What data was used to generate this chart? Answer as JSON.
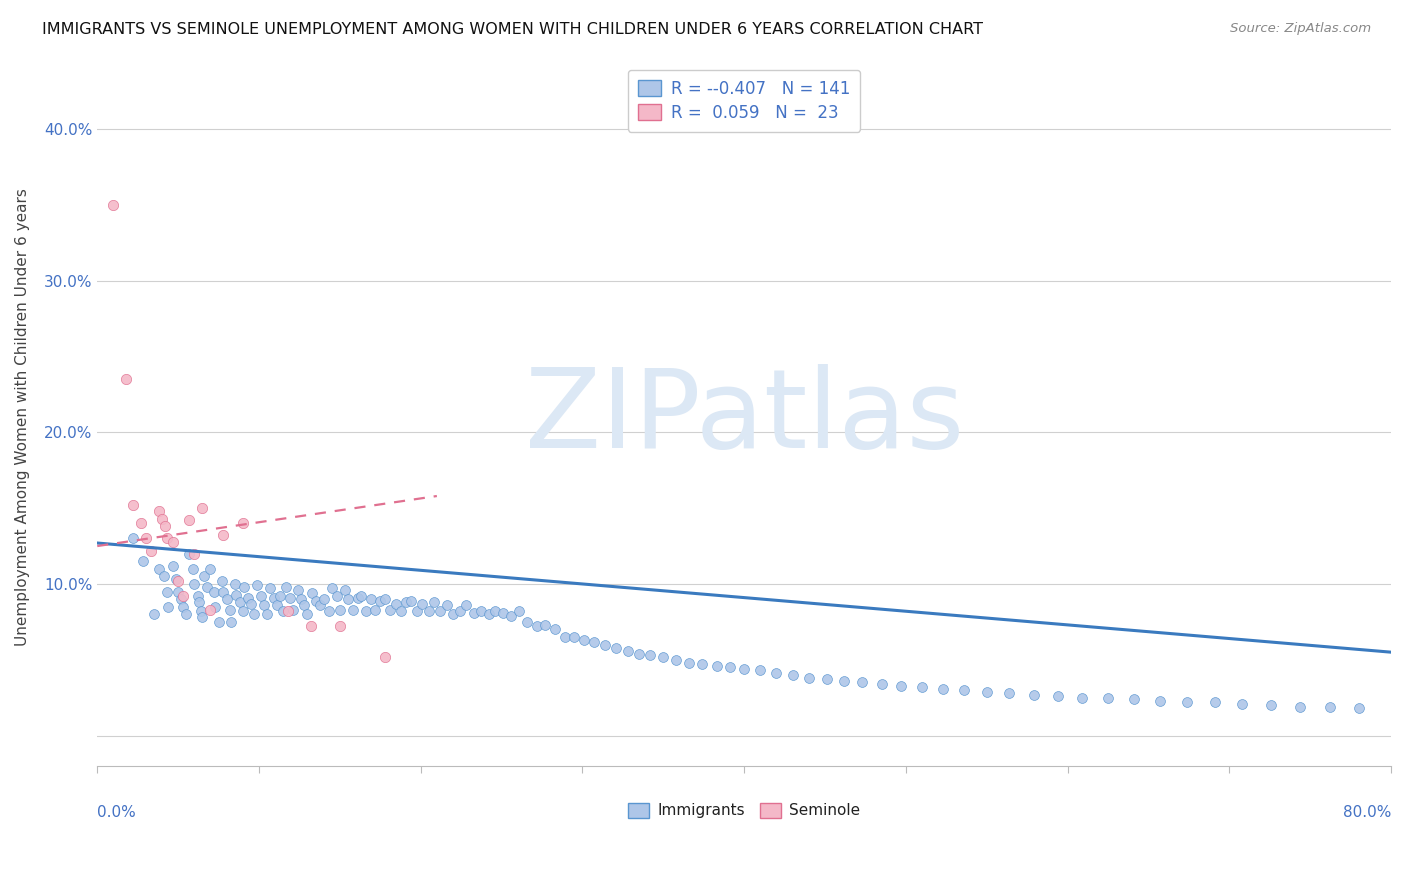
{
  "title": "IMMIGRANTS VS SEMINOLE UNEMPLOYMENT AMONG WOMEN WITH CHILDREN UNDER 6 YEARS CORRELATION CHART",
  "source": "Source: ZipAtlas.com",
  "ylabel": "Unemployment Among Women with Children Under 6 years",
  "xlim": [
    0.0,
    0.8
  ],
  "ylim": [
    -0.02,
    0.44
  ],
  "yticks": [
    0.0,
    0.1,
    0.2,
    0.3,
    0.4
  ],
  "ytick_labels": [
    "",
    "10.0%",
    "20.0%",
    "30.0%",
    "40.0%"
  ],
  "xtick_left": "0.0%",
  "xtick_right": "80.0%",
  "legend_r1": "-0.407",
  "legend_n1": "141",
  "legend_r2": "0.059",
  "legend_n2": "23",
  "color_imm_fill": "#aec6e8",
  "color_imm_edge": "#5a96d0",
  "color_sem_fill": "#f4b8c8",
  "color_sem_edge": "#e07090",
  "color_trend_imm": "#3a7abf",
  "color_trend_sem": "#e07090",
  "watermark_color": "#dce8f5",
  "trend_imm_x0": 0.0,
  "trend_imm_x1": 0.8,
  "trend_imm_y0": 0.127,
  "trend_imm_y1": 0.055,
  "trend_sem_x0": 0.0,
  "trend_sem_x1": 0.21,
  "trend_sem_y0": 0.125,
  "trend_sem_y1": 0.158,
  "imm_x": [
    0.022,
    0.028,
    0.035,
    0.038,
    0.041,
    0.043,
    0.044,
    0.047,
    0.049,
    0.05,
    0.052,
    0.053,
    0.055,
    0.057,
    0.059,
    0.06,
    0.062,
    0.063,
    0.064,
    0.065,
    0.066,
    0.068,
    0.07,
    0.072,
    0.073,
    0.075,
    0.077,
    0.078,
    0.08,
    0.082,
    0.083,
    0.085,
    0.086,
    0.088,
    0.09,
    0.091,
    0.093,
    0.095,
    0.097,
    0.099,
    0.101,
    0.103,
    0.105,
    0.107,
    0.109,
    0.111,
    0.113,
    0.115,
    0.117,
    0.119,
    0.121,
    0.124,
    0.126,
    0.128,
    0.13,
    0.133,
    0.135,
    0.138,
    0.14,
    0.143,
    0.145,
    0.148,
    0.15,
    0.153,
    0.155,
    0.158,
    0.161,
    0.163,
    0.166,
    0.169,
    0.172,
    0.175,
    0.178,
    0.181,
    0.185,
    0.188,
    0.191,
    0.194,
    0.198,
    0.201,
    0.205,
    0.208,
    0.212,
    0.216,
    0.22,
    0.224,
    0.228,
    0.233,
    0.237,
    0.242,
    0.246,
    0.251,
    0.256,
    0.261,
    0.266,
    0.272,
    0.277,
    0.283,
    0.289,
    0.295,
    0.301,
    0.307,
    0.314,
    0.321,
    0.328,
    0.335,
    0.342,
    0.35,
    0.358,
    0.366,
    0.374,
    0.383,
    0.391,
    0.4,
    0.41,
    0.42,
    0.43,
    0.44,
    0.451,
    0.462,
    0.473,
    0.485,
    0.497,
    0.51,
    0.523,
    0.536,
    0.55,
    0.564,
    0.579,
    0.594,
    0.609,
    0.625,
    0.641,
    0.657,
    0.674,
    0.691,
    0.708,
    0.726,
    0.744,
    0.762,
    0.78
  ],
  "imm_y": [
    0.13,
    0.115,
    0.08,
    0.11,
    0.105,
    0.095,
    0.085,
    0.112,
    0.103,
    0.095,
    0.09,
    0.085,
    0.08,
    0.12,
    0.11,
    0.1,
    0.092,
    0.088,
    0.082,
    0.078,
    0.105,
    0.098,
    0.11,
    0.095,
    0.085,
    0.075,
    0.102,
    0.095,
    0.09,
    0.083,
    0.075,
    0.1,
    0.093,
    0.088,
    0.082,
    0.098,
    0.091,
    0.087,
    0.08,
    0.099,
    0.092,
    0.086,
    0.08,
    0.097,
    0.091,
    0.086,
    0.092,
    0.082,
    0.098,
    0.091,
    0.083,
    0.096,
    0.09,
    0.086,
    0.08,
    0.094,
    0.089,
    0.086,
    0.09,
    0.082,
    0.097,
    0.092,
    0.083,
    0.096,
    0.09,
    0.083,
    0.091,
    0.092,
    0.082,
    0.09,
    0.083,
    0.089,
    0.09,
    0.083,
    0.087,
    0.082,
    0.088,
    0.089,
    0.082,
    0.087,
    0.082,
    0.088,
    0.082,
    0.086,
    0.08,
    0.082,
    0.086,
    0.081,
    0.082,
    0.08,
    0.082,
    0.081,
    0.079,
    0.082,
    0.075,
    0.072,
    0.073,
    0.07,
    0.065,
    0.065,
    0.063,
    0.062,
    0.06,
    0.058,
    0.056,
    0.054,
    0.053,
    0.052,
    0.05,
    0.048,
    0.047,
    0.046,
    0.045,
    0.044,
    0.043,
    0.041,
    0.04,
    0.038,
    0.037,
    0.036,
    0.035,
    0.034,
    0.033,
    0.032,
    0.031,
    0.03,
    0.029,
    0.028,
    0.027,
    0.026,
    0.025,
    0.025,
    0.024,
    0.023,
    0.022,
    0.022,
    0.021,
    0.02,
    0.019,
    0.019,
    0.018
  ],
  "sem_x": [
    0.01,
    0.018,
    0.022,
    0.027,
    0.03,
    0.033,
    0.038,
    0.04,
    0.042,
    0.043,
    0.047,
    0.05,
    0.053,
    0.057,
    0.06,
    0.065,
    0.07,
    0.078,
    0.09,
    0.118,
    0.132,
    0.15,
    0.178
  ],
  "sem_y": [
    0.35,
    0.235,
    0.152,
    0.14,
    0.13,
    0.122,
    0.148,
    0.143,
    0.138,
    0.13,
    0.128,
    0.102,
    0.092,
    0.142,
    0.12,
    0.15,
    0.083,
    0.132,
    0.14,
    0.082,
    0.072,
    0.072,
    0.052
  ]
}
